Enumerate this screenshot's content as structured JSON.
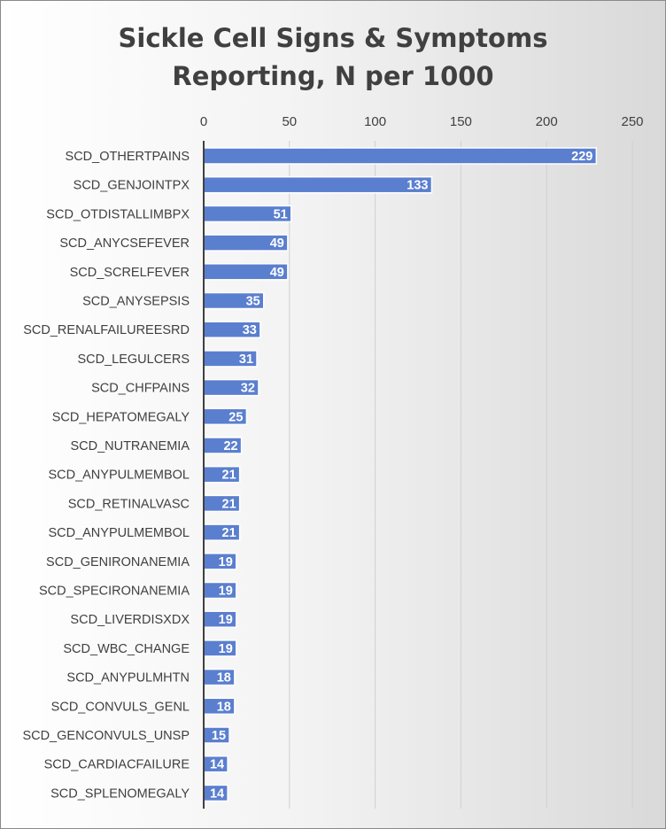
{
  "chart_data": {
    "type": "bar",
    "orientation": "horizontal",
    "title_lines": [
      "Sickle Cell Signs & Symptoms",
      "Reporting, N per 1000"
    ],
    "categories": [
      "SCD_OTHERTPAINS",
      "SCD_GENJOINTPX",
      "SCD_OTDISTALLIMBPX",
      "SCD_ANYCSEFEVER",
      "SCD_SCRELFEVER",
      "SCD_ANYSEPSIS",
      "SCD_RENALFAILUREESRD",
      "SCD_LEGULCERS",
      "SCD_CHFPAINS",
      "SCD_HEPATOMEGALY",
      "SCD_NUTRANEMIA",
      "SCD_ANYPULMEMBOL",
      "SCD_RETINALVASC",
      "SCD_ANYPULMEMBOL",
      "SCD_GENIRONANEMIA",
      "SCD_SPECIRONANEMIA",
      "SCD_LIVERDISXDX",
      "SCD_WBC_CHANGE",
      "SCD_ANYPULMHTN",
      "SCD_CONVULS_GENL",
      "SCD_GENCONVULS_UNSP",
      "SCD_CARDIACFAILURE",
      "SCD_SPLENOMEGALY"
    ],
    "values": [
      229,
      133,
      51,
      49,
      49,
      35,
      33,
      31,
      32,
      25,
      22,
      21,
      21,
      21,
      19,
      19,
      19,
      19,
      18,
      18,
      15,
      14,
      14
    ],
    "xlim": [
      0,
      250
    ],
    "x_ticks": [
      0,
      50,
      100,
      150,
      200,
      250
    ],
    "x_axis_position": "top",
    "gridlines": true,
    "data_labels": true,
    "legend": "none",
    "colors": {
      "bar": "#5b7fcf",
      "text": "#404040",
      "grid": "#d0d0d0"
    }
  }
}
